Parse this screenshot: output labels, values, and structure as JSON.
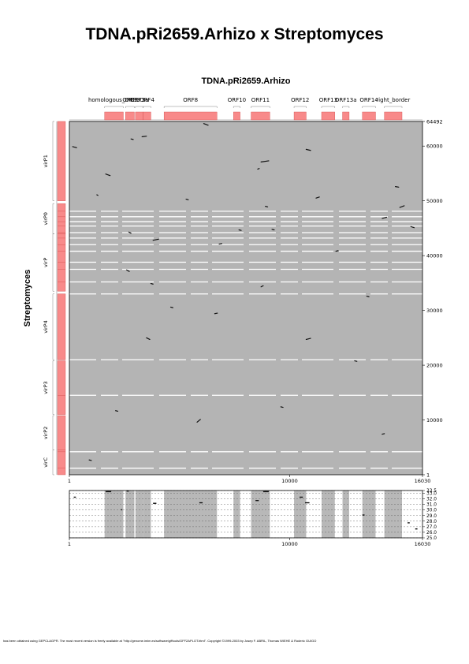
{
  "page": {
    "title": "TDNA.pRi2659.Arhizo x Streptomyces",
    "footer": "has been obtained using GEPCLAGPR. The most recent version is freely available at \"http://genome.imim.es/software/gfftools/GFF2APLOT.html\". Copyright ©1999-2003 by Josep F. ABRIL, Thomas WIEHE & Roderic GUIGO"
  },
  "chart_data": [
    {
      "type": "scatter",
      "title": "TDNA.pRi2659.Arhizo",
      "ylabel": "Streptomyces",
      "xlim": [
        1,
        16030
      ],
      "ylim": [
        1,
        64492
      ],
      "xticks": [
        "1",
        "10000",
        "16030"
      ],
      "yticks": [
        "1",
        "10000",
        "20000",
        "30000",
        "40000",
        "50000",
        "60000",
        "64492"
      ],
      "x_features": [
        {
          "label": "homologous_ORF3",
          "start": 1600,
          "end": 2450
        },
        {
          "label": "ORF3",
          "start": 2550,
          "end": 2950
        },
        {
          "label": "ORF3a",
          "start": 3000,
          "end": 3350
        },
        {
          "label": "ORF4",
          "start": 3350,
          "end": 3700
        },
        {
          "label": "ORF8",
          "start": 4300,
          "end": 6700
        },
        {
          "label": "ORF10",
          "start": 7450,
          "end": 7750
        },
        {
          "label": "ORF11",
          "start": 8250,
          "end": 9100
        },
        {
          "label": "ORF12",
          "start": 10200,
          "end": 10750
        },
        {
          "label": "ORF13",
          "start": 11450,
          "end": 12050
        },
        {
          "label": "ORF13a",
          "start": 12400,
          "end": 12700
        },
        {
          "label": "ORF14",
          "start": 13300,
          "end": 13900
        },
        {
          "label": "right_border",
          "start": 14300,
          "end": 15100
        }
      ],
      "y_features": [
        {
          "label": "virP1",
          "start": 50000,
          "end": 64492
        },
        {
          "label": "virP0",
          "start": 44000,
          "end": 49500
        },
        {
          "label": "virP",
          "start": 33500,
          "end": 44000
        },
        {
          "label": "virP4",
          "start": 21000,
          "end": 33000
        },
        {
          "label": "virP3",
          "start": 11000,
          "end": 20800
        },
        {
          "label": "virP2",
          "start": 4500,
          "end": 10800
        },
        {
          "label": "virC",
          "start": 1,
          "end": 4500
        }
      ],
      "white_bands_y": [
        1200,
        4200,
        14500,
        21000,
        33000,
        35200,
        37500,
        38800,
        40800,
        42000,
        43200,
        44200,
        45400,
        46200,
        47100,
        48100
      ],
      "gap_columns_x": [
        1,
        1550,
        2500,
        2780,
        3420,
        3700,
        4300,
        6750,
        7350,
        7550,
        7750,
        8200,
        9150,
        10250,
        10850,
        11350,
        11800,
        12150,
        12450,
        12850,
        13250,
        13850,
        14250,
        15150,
        16030
      ],
      "segments": [
        {
          "x": [
            150,
            330
          ],
          "y": [
            59900,
            59700
          ]
        },
        {
          "x": [
            1650,
            1850
          ],
          "y": [
            54900,
            54600
          ]
        },
        {
          "x": [
            6100,
            6300
          ],
          "y": [
            64100,
            63800
          ]
        },
        {
          "x": [
            8700,
            9050
          ],
          "y": [
            57100,
            57300
          ]
        },
        {
          "x": [
            10750,
            10950
          ],
          "y": [
            59400,
            59200
          ]
        },
        {
          "x": [
            10750,
            10950
          ],
          "y": [
            24700,
            24900
          ]
        },
        {
          "x": [
            3800,
            4050
          ],
          "y": [
            42800,
            43000
          ]
        },
        {
          "x": [
            2600,
            2720
          ],
          "y": [
            37400,
            37100
          ]
        },
        {
          "x": [
            2700,
            2800
          ],
          "y": [
            44300,
            44100
          ]
        },
        {
          "x": [
            15000,
            15200
          ],
          "y": [
            48800,
            49100
          ]
        },
        {
          "x": [
            14200,
            14400
          ],
          "y": [
            46800,
            47000
          ]
        },
        {
          "x": [
            15500,
            15650
          ],
          "y": [
            45300,
            45100
          ]
        },
        {
          "x": [
            8550,
            8620
          ],
          "y": [
            55800,
            55900
          ]
        },
        {
          "x": [
            8900,
            9000
          ],
          "y": [
            49000,
            48900
          ]
        },
        {
          "x": [
            9200,
            9300
          ],
          "y": [
            44800,
            44700
          ]
        },
        {
          "x": [
            3300,
            3500
          ],
          "y": [
            61700,
            61800
          ]
        },
        {
          "x": [
            5800,
            5950
          ],
          "y": [
            9600,
            10100
          ]
        },
        {
          "x": [
            2100,
            2200
          ],
          "y": [
            11700,
            11600
          ]
        },
        {
          "x": [
            14800,
            14950
          ],
          "y": [
            52600,
            52500
          ]
        },
        {
          "x": [
            3700,
            3800
          ],
          "y": [
            34900,
            34800
          ]
        },
        {
          "x": [
            3500,
            3650
          ],
          "y": [
            25000,
            24700
          ]
        },
        {
          "x": [
            900,
            1000
          ],
          "y": [
            2700,
            2600
          ]
        },
        {
          "x": [
            8700,
            8800
          ],
          "y": [
            34300,
            34500
          ]
        },
        {
          "x": [
            11200,
            11350
          ],
          "y": [
            50500,
            50700
          ]
        },
        {
          "x": [
            12950,
            13050
          ],
          "y": [
            20800,
            20700
          ]
        },
        {
          "x": [
            14200,
            14300
          ],
          "y": [
            7400,
            7500
          ]
        },
        {
          "x": [
            6600,
            6720
          ],
          "y": [
            29400,
            29500
          ]
        },
        {
          "x": [
            4600,
            4700
          ],
          "y": [
            30600,
            30500
          ]
        },
        {
          "x": [
            2800,
            2900
          ],
          "y": [
            61300,
            61200
          ]
        },
        {
          "x": [
            9600,
            9700
          ],
          "y": [
            12400,
            12300
          ]
        },
        {
          "x": [
            12100,
            12200
          ],
          "y": [
            40800,
            40900
          ]
        },
        {
          "x": [
            13500,
            13600
          ],
          "y": [
            32600,
            32500
          ]
        },
        {
          "x": [
            1250,
            1300
          ],
          "y": [
            51100,
            51000
          ]
        },
        {
          "x": [
            6800,
            6920
          ],
          "y": [
            42100,
            42200
          ]
        },
        {
          "x": [
            5300,
            5400
          ],
          "y": [
            50300,
            50200
          ]
        },
        {
          "x": [
            7700,
            7800
          ],
          "y": [
            44700,
            44600
          ]
        }
      ]
    },
    {
      "type": "scatter",
      "xlim": [
        1,
        16030
      ],
      "ylim": [
        25,
        33.5
      ],
      "xticks": [
        "1",
        "10000",
        "16030"
      ],
      "yticks": [
        "25.0",
        "26.0",
        "27.0",
        "28.0",
        "29.0",
        "30.0",
        "31.0",
        "32.0",
        "33.0",
        "33.5"
      ],
      "segments": [
        {
          "x": [
            200,
            300
          ],
          "y": [
            32.3,
            32.3
          ]
        },
        {
          "x": [
            1650,
            1900
          ],
          "y": [
            33.3,
            33.3
          ]
        },
        {
          "x": [
            2600,
            2700
          ],
          "y": [
            33.4,
            33.4
          ]
        },
        {
          "x": [
            2350,
            2400
          ],
          "y": [
            30.1,
            30.0
          ]
        },
        {
          "x": [
            3800,
            3950
          ],
          "y": [
            31.2,
            31.2
          ]
        },
        {
          "x": [
            5900,
            6050
          ],
          "y": [
            31.3,
            31.3
          ]
        },
        {
          "x": [
            8450,
            8600
          ],
          "y": [
            31.7,
            31.7
          ]
        },
        {
          "x": [
            8800,
            9050
          ],
          "y": [
            33.3,
            33.3
          ]
        },
        {
          "x": [
            10450,
            10600
          ],
          "y": [
            32.3,
            32.3
          ]
        },
        {
          "x": [
            10700,
            10900
          ],
          "y": [
            31.3,
            31.3
          ]
        },
        {
          "x": [
            15350,
            15450
          ],
          "y": [
            27.7,
            27.7
          ]
        },
        {
          "x": [
            15700,
            15800
          ],
          "y": [
            26.6,
            26.6
          ]
        },
        {
          "x": [
            13300,
            13400
          ],
          "y": [
            29.1,
            29.1
          ]
        }
      ]
    }
  ],
  "colors": {
    "feature": "#f88a8a",
    "feature_stroke": "#d14b4b",
    "plot_bg": "#b4b4b4",
    "band": "#ffffff",
    "hit": "#111111"
  }
}
